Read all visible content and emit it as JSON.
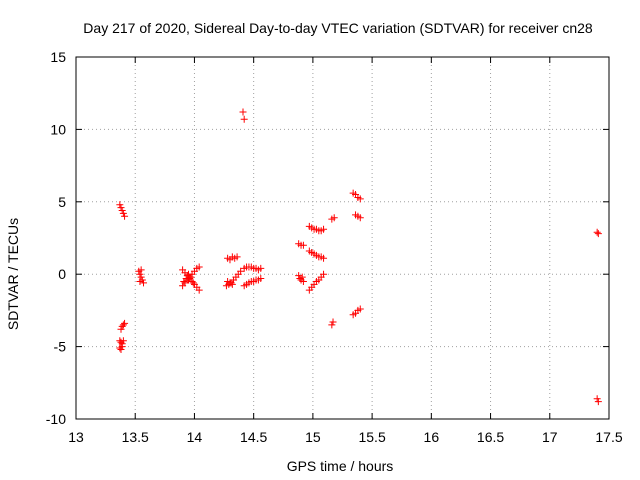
{
  "chart_data": {
    "type": "scatter",
    "title": "Day 217 of 2020, Sidereal Day-to-day VTEC variation (SDTVAR) for receiver cn28",
    "xlabel": "GPS time / hours",
    "ylabel": "SDTVAR / TECUs",
    "xlim": [
      13,
      17.5
    ],
    "ylim": [
      -10,
      15
    ],
    "xticks": [
      13,
      13.5,
      14,
      14.5,
      15,
      15.5,
      16,
      16.5,
      17,
      17.5
    ],
    "xtick_labels": [
      "13",
      "13.5",
      "14",
      "14.5",
      "15",
      "15.5",
      "16",
      "16.5",
      "17",
      "17.5"
    ],
    "yticks": [
      -10,
      -5,
      0,
      5,
      10,
      15
    ],
    "ytick_labels": [
      "-10",
      "-5",
      "0",
      "5",
      "10",
      "15"
    ],
    "grid": true,
    "marker": "+",
    "marker_color": "#ff0000",
    "series": [
      {
        "name": "SDTVAR",
        "points": [
          [
            13.37,
            4.8
          ],
          [
            13.38,
            4.6
          ],
          [
            13.39,
            4.4
          ],
          [
            13.4,
            4.2
          ],
          [
            13.41,
            4.0
          ],
          [
            13.38,
            -3.8
          ],
          [
            13.39,
            -3.6
          ],
          [
            13.4,
            -3.5
          ],
          [
            13.41,
            -3.4
          ],
          [
            13.37,
            -4.6
          ],
          [
            13.38,
            -4.7
          ],
          [
            13.39,
            -4.8
          ],
          [
            13.4,
            -4.6
          ],
          [
            13.37,
            -5.1
          ],
          [
            13.38,
            -5.2
          ],
          [
            13.39,
            -5.0
          ],
          [
            13.53,
            0.2
          ],
          [
            13.54,
            0.0
          ],
          [
            13.55,
            -0.2
          ],
          [
            13.56,
            -0.4
          ],
          [
            13.57,
            -0.6
          ],
          [
            13.55,
            0.3
          ],
          [
            13.54,
            -0.5
          ],
          [
            13.9,
            0.3
          ],
          [
            13.92,
            0.1
          ],
          [
            13.94,
            -0.1
          ],
          [
            13.96,
            -0.3
          ],
          [
            13.98,
            -0.5
          ],
          [
            14.0,
            -0.7
          ],
          [
            14.02,
            -0.9
          ],
          [
            14.04,
            -1.1
          ],
          [
            13.9,
            -0.8
          ],
          [
            13.92,
            -0.6
          ],
          [
            13.94,
            -0.4
          ],
          [
            13.96,
            -0.2
          ],
          [
            13.98,
            0.0
          ],
          [
            14.0,
            0.2
          ],
          [
            14.02,
            0.4
          ],
          [
            14.04,
            0.5
          ],
          [
            13.93,
            -0.3
          ],
          [
            13.95,
            -0.4
          ],
          [
            13.97,
            -0.2
          ],
          [
            13.95,
            0.0
          ],
          [
            13.99,
            -0.6
          ],
          [
            13.91,
            -0.5
          ],
          [
            14.28,
            1.1
          ],
          [
            14.3,
            1.0
          ],
          [
            14.32,
            1.2
          ],
          [
            14.34,
            1.1
          ],
          [
            14.36,
            1.2
          ],
          [
            14.27,
            -0.8
          ],
          [
            14.29,
            -0.7
          ],
          [
            14.31,
            -0.6
          ],
          [
            14.33,
            -0.4
          ],
          [
            14.35,
            -0.2
          ],
          [
            14.37,
            0.0
          ],
          [
            14.39,
            0.2
          ],
          [
            14.28,
            -0.5
          ],
          [
            14.3,
            -0.6
          ],
          [
            14.32,
            -0.7
          ],
          [
            14.41,
            11.2
          ],
          [
            14.42,
            10.7
          ],
          [
            14.42,
            0.4
          ],
          [
            14.44,
            0.5
          ],
          [
            14.46,
            0.5
          ],
          [
            14.48,
            0.5
          ],
          [
            14.5,
            0.4
          ],
          [
            14.52,
            0.4
          ],
          [
            14.54,
            0.3
          ],
          [
            14.56,
            0.4
          ],
          [
            14.42,
            -0.8
          ],
          [
            14.44,
            -0.7
          ],
          [
            14.46,
            -0.6
          ],
          [
            14.48,
            -0.5
          ],
          [
            14.5,
            -0.5
          ],
          [
            14.52,
            -0.4
          ],
          [
            14.54,
            -0.4
          ],
          [
            14.56,
            -0.3
          ],
          [
            14.88,
            2.1
          ],
          [
            14.9,
            2.0
          ],
          [
            14.92,
            2.0
          ],
          [
            14.88,
            -0.1
          ],
          [
            14.89,
            -0.3
          ],
          [
            14.9,
            -0.4
          ],
          [
            14.91,
            -0.2
          ],
          [
            14.92,
            -0.5
          ],
          [
            14.97,
            3.3
          ],
          [
            14.99,
            3.2
          ],
          [
            15.01,
            3.1
          ],
          [
            15.03,
            3.1
          ],
          [
            15.05,
            3.0
          ],
          [
            15.07,
            3.0
          ],
          [
            15.09,
            3.1
          ],
          [
            14.97,
            1.6
          ],
          [
            14.99,
            1.5
          ],
          [
            15.01,
            1.4
          ],
          [
            15.03,
            1.3
          ],
          [
            15.05,
            1.2
          ],
          [
            15.07,
            1.2
          ],
          [
            15.09,
            1.1
          ],
          [
            14.97,
            -1.1
          ],
          [
            14.99,
            -0.9
          ],
          [
            15.01,
            -0.7
          ],
          [
            15.03,
            -0.5
          ],
          [
            15.05,
            -0.4
          ],
          [
            15.07,
            -0.2
          ],
          [
            15.09,
            0.0
          ],
          [
            15.16,
            3.8
          ],
          [
            15.18,
            3.9
          ],
          [
            15.16,
            -3.5
          ],
          [
            15.17,
            -3.3
          ],
          [
            15.34,
            5.6
          ],
          [
            15.36,
            5.5
          ],
          [
            15.38,
            5.3
          ],
          [
            15.4,
            5.2
          ],
          [
            15.36,
            4.1
          ],
          [
            15.38,
            4.0
          ],
          [
            15.4,
            3.9
          ],
          [
            15.34,
            -2.8
          ],
          [
            15.36,
            -2.7
          ],
          [
            15.38,
            -2.5
          ],
          [
            15.4,
            -2.4
          ],
          [
            17.4,
            2.9
          ],
          [
            17.41,
            2.8
          ],
          [
            17.4,
            -8.6
          ],
          [
            17.41,
            -8.8
          ]
        ]
      }
    ]
  }
}
